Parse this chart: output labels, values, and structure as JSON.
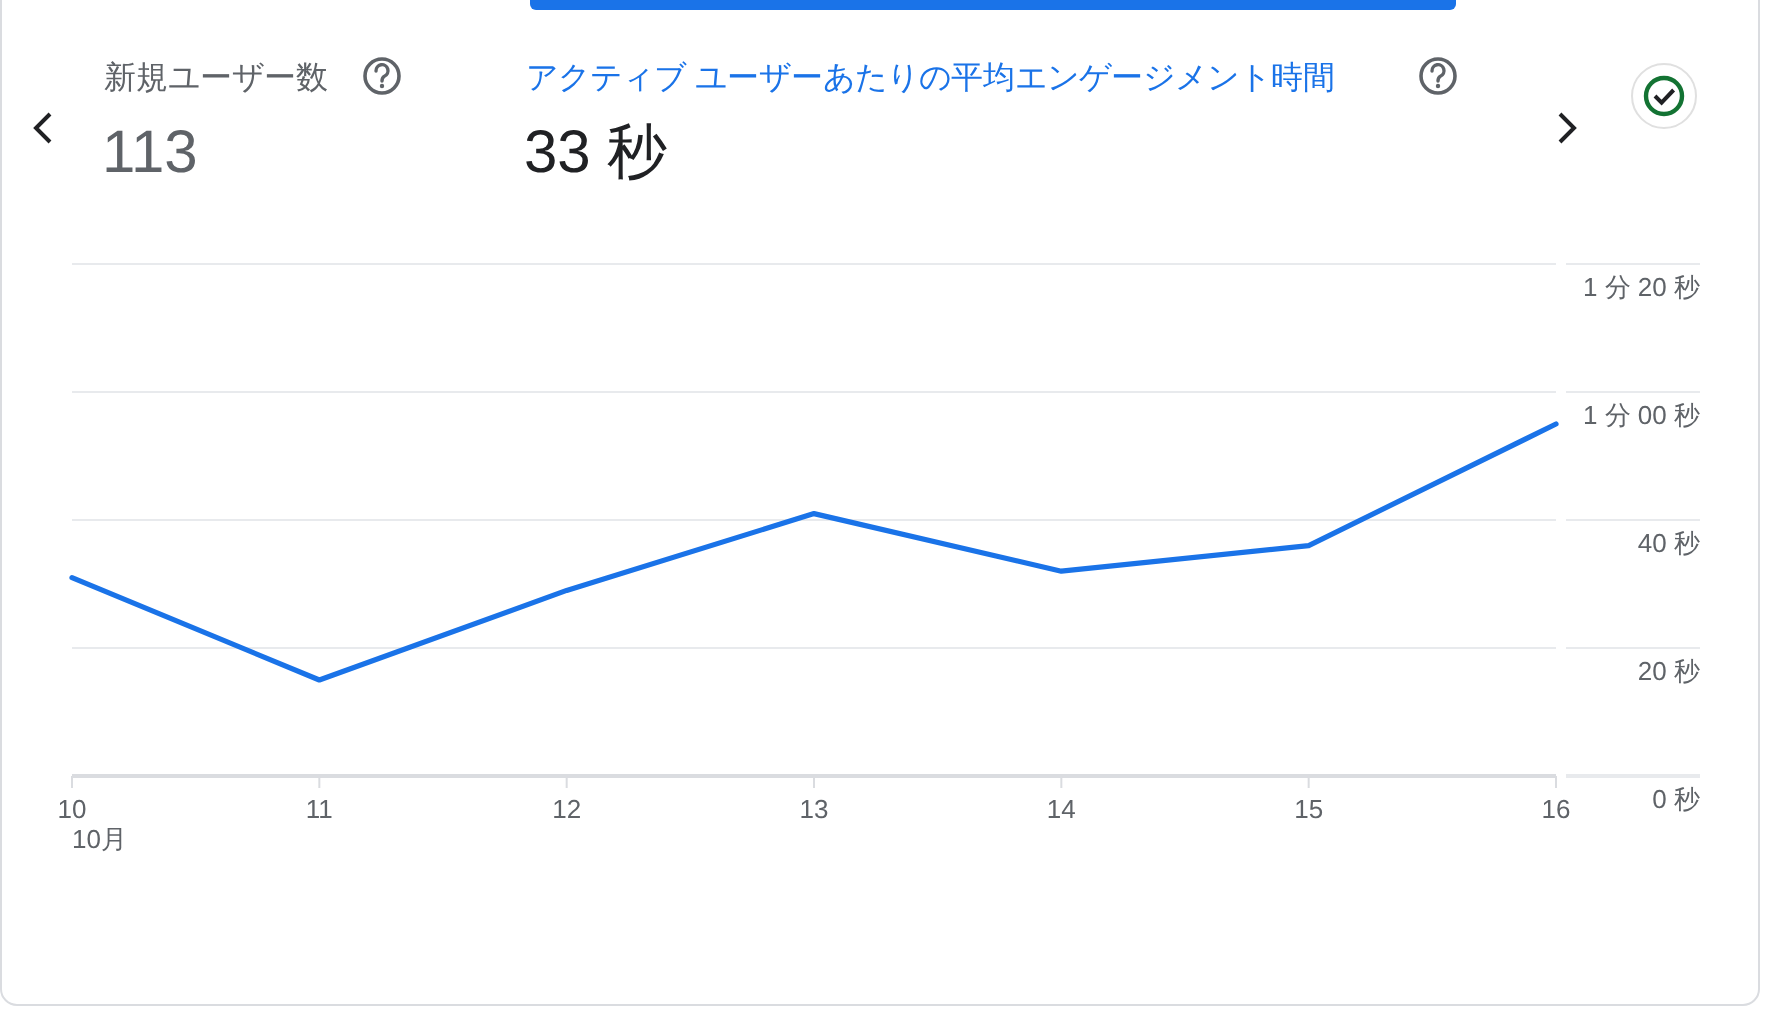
{
  "chart_data": {
    "type": "line",
    "title": "アクティブ ユーザーあたりの平均エンゲージメント時間",
    "subtitle": "33 秒",
    "annotations": [
      "新規ユーザー数",
      "113",
      "10月"
    ],
    "categories": [
      "10",
      "11",
      "12",
      "13",
      "14",
      "15",
      "16"
    ],
    "series": [
      {
        "color": "#1a73e8",
        "values": [
          31,
          15,
          29,
          41,
          32,
          36,
          55
        ]
      }
    ],
    "ylim": [
      0,
      80
    ],
    "yticks": [
      {
        "value": 0,
        "label": "0 秒"
      },
      {
        "value": 20,
        "label": "20 秒"
      },
      {
        "value": 40,
        "label": "40 秒"
      },
      {
        "value": 60,
        "label": "1 分 00 秒"
      },
      {
        "value": 80,
        "label": "1 分 20 秒"
      }
    ],
    "grid": "y"
  }
}
